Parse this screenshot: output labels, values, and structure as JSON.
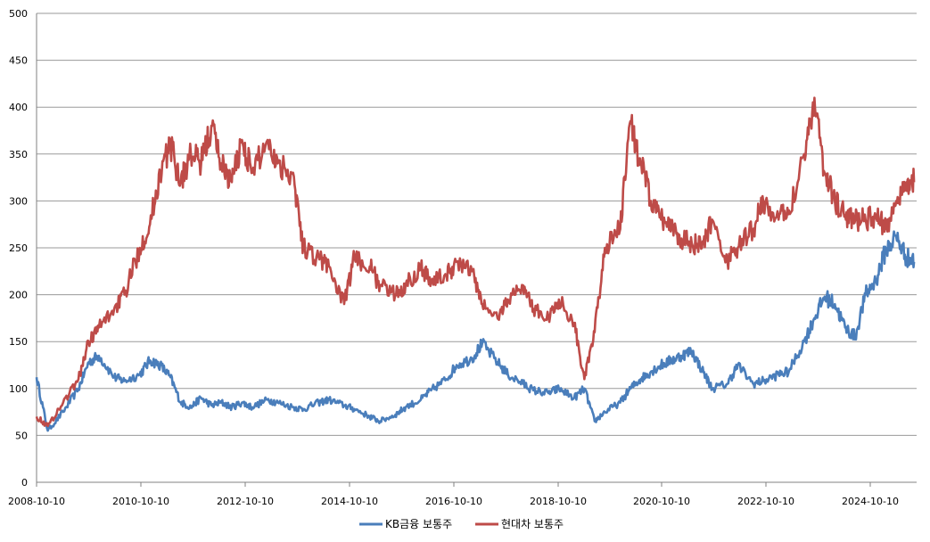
{
  "chart_data": {
    "type": "line",
    "title": "",
    "xlabel": "",
    "ylabel": "",
    "ylim": [
      0,
      500
    ],
    "y_ticks": [
      "0",
      "50",
      "100",
      "150",
      "200",
      "250",
      "300",
      "350",
      "400",
      "450",
      "500"
    ],
    "x_tick_labels": [
      "2008-10-10",
      "2010-10-10",
      "2012-10-10",
      "2014-10-10",
      "2016-10-10",
      "2018-10-10",
      "2020-10-10",
      "2022-10-10",
      "2024-10-10"
    ],
    "x_range": [
      2008.78,
      2026.0
    ],
    "grid": true,
    "legend_position": "bottom",
    "x": [
      2008.78,
      2009.0,
      2009.3,
      2009.6,
      2009.8,
      2010.0,
      2010.3,
      2010.5,
      2010.8,
      2011.0,
      2011.2,
      2011.4,
      2011.6,
      2011.8,
      2012.0,
      2012.2,
      2012.4,
      2012.6,
      2012.8,
      2013.0,
      2013.3,
      2013.5,
      2013.8,
      2014.0,
      2014.3,
      2014.5,
      2014.8,
      2015.0,
      2015.3,
      2015.5,
      2015.8,
      2016.0,
      2016.3,
      2016.5,
      2016.8,
      2017.0,
      2017.3,
      2017.5,
      2017.8,
      2018.0,
      2018.3,
      2018.5,
      2018.8,
      2019.0,
      2019.3,
      2019.5,
      2019.7,
      2019.9,
      2020.2,
      2020.4,
      2020.6,
      2020.8,
      2021.0,
      2021.2,
      2021.4,
      2021.6,
      2021.8,
      2022.0,
      2022.3,
      2022.5,
      2022.8,
      2023.0,
      2023.3,
      2023.5,
      2023.8,
      2024.0,
      2024.2,
      2024.4,
      2024.6,
      2024.8,
      2025.0,
      2025.2,
      2025.4,
      2025.6,
      2025.8,
      2025.95
    ],
    "series": [
      {
        "name": "KB금융 보통주",
        "color": "#4a7ebb",
        "values": [
          112,
          55,
          75,
          100,
          128,
          135,
          112,
          108,
          115,
          130,
          125,
          112,
          85,
          80,
          90,
          82,
          85,
          80,
          85,
          80,
          88,
          85,
          80,
          78,
          85,
          88,
          82,
          78,
          70,
          65,
          72,
          80,
          88,
          98,
          110,
          125,
          132,
          148,
          128,
          115,
          105,
          98,
          95,
          100,
          90,
          100,
          65,
          75,
          85,
          100,
          110,
          118,
          125,
          130,
          135,
          140,
          120,
          100,
          105,
          125,
          105,
          108,
          115,
          118,
          150,
          175,
          198,
          190,
          165,
          155,
          200,
          215,
          248,
          262,
          240,
          235
        ]
      },
      {
        "name": "현대차 보통주",
        "color": "#be4b48",
        "values": [
          70,
          60,
          85,
          110,
          150,
          165,
          185,
          200,
          250,
          275,
          330,
          360,
          320,
          350,
          340,
          380,
          340,
          320,
          365,
          330,
          365,
          340,
          330,
          250,
          240,
          230,
          190,
          240,
          230,
          210,
          200,
          210,
          230,
          215,
          220,
          235,
          225,
          190,
          175,
          195,
          210,
          185,
          175,
          195,
          170,
          110,
          160,
          250,
          270,
          385,
          340,
          300,
          280,
          275,
          260,
          255,
          250,
          280,
          235,
          250,
          270,
          300,
          280,
          290,
          350,
          410,
          330,
          300,
          285,
          280,
          280,
          285,
          270,
          300,
          320,
          320
        ]
      }
    ]
  }
}
